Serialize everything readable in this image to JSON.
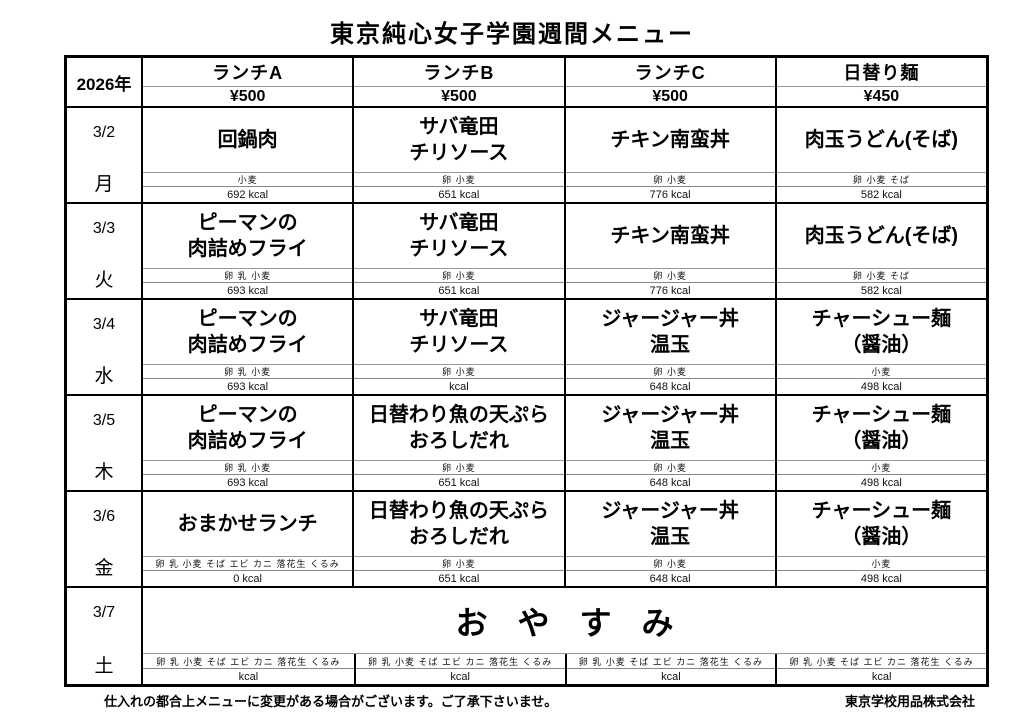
{
  "title": "東京純心女子学園週間メニュー",
  "header": {
    "year": "2026年",
    "columns": [
      {
        "label": "ランチA",
        "price": "¥500"
      },
      {
        "label": "ランチB",
        "price": "¥500"
      },
      {
        "label": "ランチC",
        "price": "¥500"
      },
      {
        "label": "日替り麺",
        "price": "¥450"
      }
    ]
  },
  "rows": [
    {
      "date": "3/2",
      "day": "月",
      "cells": [
        {
          "dish": "回鍋肉",
          "allergens": "小麦",
          "kcal": "692 kcal"
        },
        {
          "dish": "サバ竜田\nチリソース",
          "allergens": "卵 小麦",
          "kcal": "651 kcal"
        },
        {
          "dish": "チキン南蛮丼",
          "allergens": "卵 小麦",
          "kcal": "776 kcal"
        },
        {
          "dish": "肉玉うどん(そば)",
          "allergens": "卵 小麦 そば",
          "kcal": "582 kcal"
        }
      ]
    },
    {
      "date": "3/3",
      "day": "火",
      "cells": [
        {
          "dish": "ピーマンの\n肉詰めフライ",
          "allergens": "卵 乳 小麦",
          "kcal": "693 kcal"
        },
        {
          "dish": "サバ竜田\nチリソース",
          "allergens": "卵 小麦",
          "kcal": "651 kcal"
        },
        {
          "dish": "チキン南蛮丼",
          "allergens": "卵 小麦",
          "kcal": "776 kcal"
        },
        {
          "dish": "肉玉うどん(そば)",
          "allergens": "卵 小麦 そば",
          "kcal": "582 kcal"
        }
      ]
    },
    {
      "date": "3/4",
      "day": "水",
      "cells": [
        {
          "dish": "ピーマンの\n肉詰めフライ",
          "allergens": "卵 乳 小麦",
          "kcal": "693 kcal"
        },
        {
          "dish": "サバ竜田\nチリソース",
          "allergens": "卵 小麦",
          "kcal": "kcal"
        },
        {
          "dish": "ジャージャー丼\n温玉",
          "allergens": "卵 小麦",
          "kcal": "648 kcal"
        },
        {
          "dish": "チャーシュー麺\n（醤油）",
          "allergens": "小麦",
          "kcal": "498 kcal"
        }
      ]
    },
    {
      "date": "3/5",
      "day": "木",
      "cells": [
        {
          "dish": "ピーマンの\n肉詰めフライ",
          "allergens": "卵 乳 小麦",
          "kcal": "693 kcal"
        },
        {
          "dish": "日替わり魚の天ぷら\nおろしだれ",
          "allergens": "卵 小麦",
          "kcal": "651 kcal"
        },
        {
          "dish": "ジャージャー丼\n温玉",
          "allergens": "卵 小麦",
          "kcal": "648 kcal"
        },
        {
          "dish": "チャーシュー麺\n（醤油）",
          "allergens": "小麦",
          "kcal": "498 kcal"
        }
      ]
    },
    {
      "date": "3/6",
      "day": "金",
      "cells": [
        {
          "dish": "おまかせランチ",
          "allergens": "卵 乳 小麦 そば エビ カニ 落花生 くるみ",
          "kcal": "0 kcal"
        },
        {
          "dish": "日替わり魚の天ぷら\nおろしだれ",
          "allergens": "卵 小麦",
          "kcal": "651 kcal"
        },
        {
          "dish": "ジャージャー丼\n温玉",
          "allergens": "卵 小麦",
          "kcal": "648 kcal"
        },
        {
          "dish": "チャーシュー麺\n（醤油）",
          "allergens": "小麦",
          "kcal": "498 kcal"
        }
      ]
    }
  ],
  "holiday": {
    "date": "3/7",
    "day": "土",
    "label": "おやすみ",
    "cells": [
      {
        "allergens": "卵 乳 小麦 そば エビ カニ 落花生 くるみ",
        "kcal": "kcal"
      },
      {
        "allergens": "卵 乳 小麦 そば エビ カニ 落花生 くるみ",
        "kcal": "kcal"
      },
      {
        "allergens": "卵 乳 小麦 そば エビ カニ 落花生 くるみ",
        "kcal": "kcal"
      },
      {
        "allergens": "卵 乳 小麦 そば エビ カニ 落花生 くるみ",
        "kcal": "kcal"
      }
    ]
  },
  "footer": {
    "note": "仕入れの都合上メニューに変更がある場合がございます。ご了承下さいませ。",
    "company": "東京学校用品株式会社"
  }
}
